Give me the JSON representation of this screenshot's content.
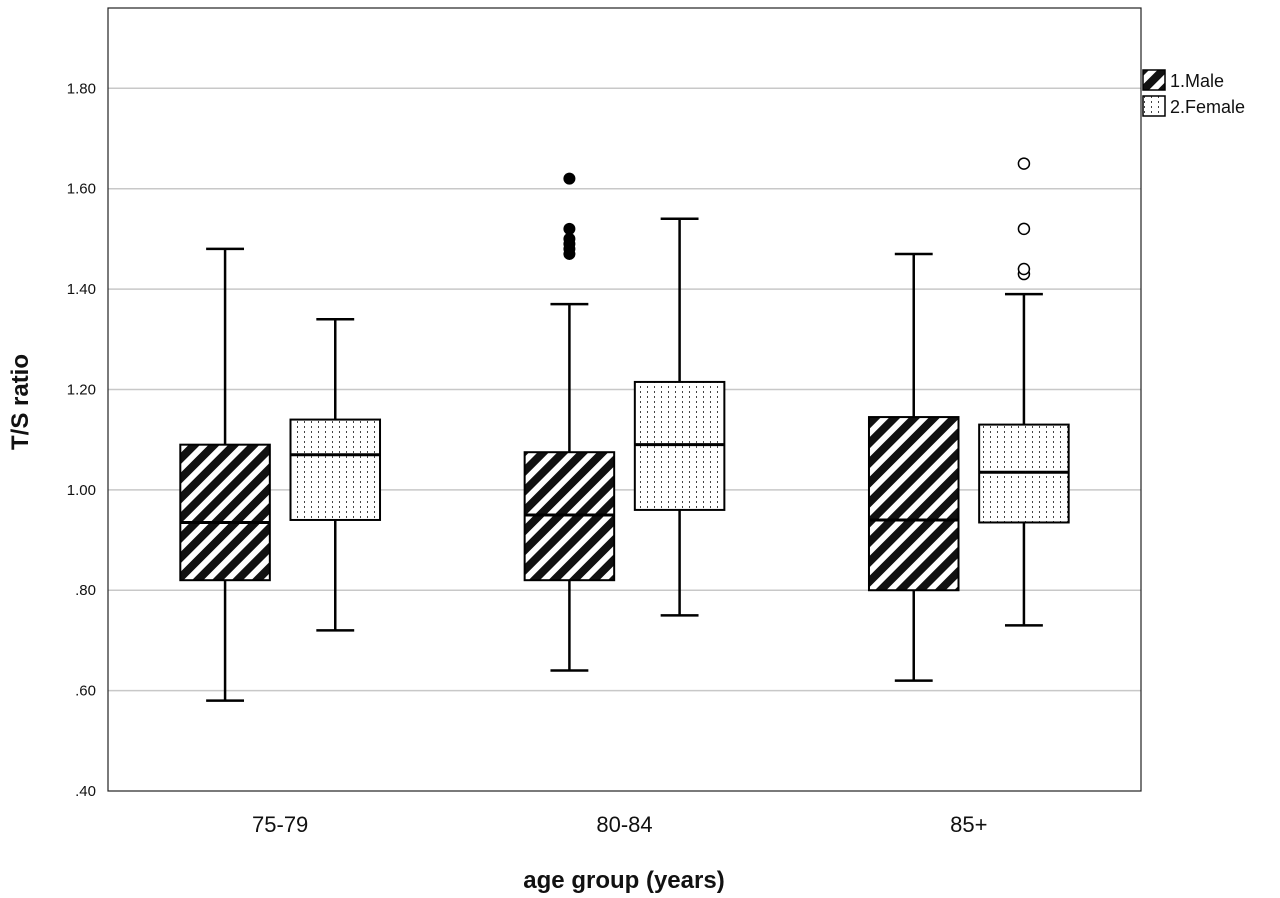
{
  "chart_data": {
    "type": "box",
    "xlabel": "age group (years)",
    "ylabel": "T/S ratio",
    "ylim": [
      0.4,
      1.96
    ],
    "y_ticks": [
      {
        "value": 0.4,
        "label": ".40"
      },
      {
        "value": 0.6,
        "label": ".60"
      },
      {
        "value": 0.8,
        "label": ".80"
      },
      {
        "value": 1.0,
        "label": "1.00"
      },
      {
        "value": 1.2,
        "label": "1.20"
      },
      {
        "value": 1.4,
        "label": "1.40"
      },
      {
        "value": 1.6,
        "label": "1.60"
      },
      {
        "value": 1.8,
        "label": "1.80"
      }
    ],
    "grid": true,
    "legend_position": "top-right",
    "categories": [
      "75-79",
      "80-84",
      "85+"
    ],
    "series": [
      {
        "name": "1.Male",
        "pattern": "diagonal-hatch",
        "color": "#000000",
        "outlier_style": "filled",
        "boxes": [
          {
            "whisker_low": 0.58,
            "q1": 0.82,
            "median": 0.935,
            "q3": 1.09,
            "whisker_high": 1.48,
            "outliers": []
          },
          {
            "whisker_low": 0.64,
            "q1": 0.82,
            "median": 0.95,
            "q3": 1.075,
            "whisker_high": 1.37,
            "outliers": [
              1.47,
              1.48,
              1.49,
              1.5,
              1.52,
              1.62
            ]
          },
          {
            "whisker_low": 0.62,
            "q1": 0.8,
            "median": 0.94,
            "q3": 1.145,
            "whisker_high": 1.47,
            "outliers": []
          }
        ]
      },
      {
        "name": "2.Female",
        "pattern": "dotted",
        "color": "#666666",
        "outlier_style": "open",
        "boxes": [
          {
            "whisker_low": 0.72,
            "q1": 0.94,
            "median": 1.07,
            "q3": 1.14,
            "whisker_high": 1.34,
            "outliers": []
          },
          {
            "whisker_low": 0.75,
            "q1": 0.96,
            "median": 1.09,
            "q3": 1.215,
            "whisker_high": 1.54,
            "outliers": []
          },
          {
            "whisker_low": 0.73,
            "q1": 0.935,
            "median": 1.035,
            "q3": 1.13,
            "whisker_high": 1.39,
            "outliers": [
              1.43,
              1.44,
              1.52,
              1.65
            ]
          }
        ]
      }
    ]
  }
}
